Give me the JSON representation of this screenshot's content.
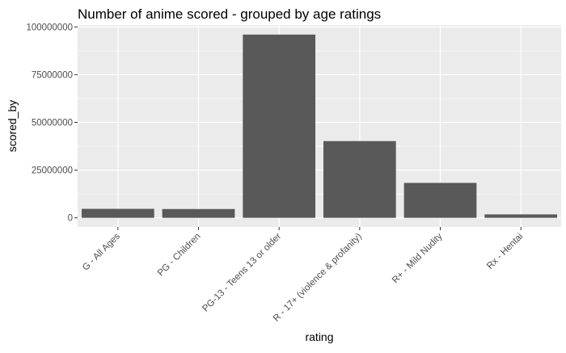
{
  "chart_data": {
    "type": "bar",
    "title": "Number of anime scored - grouped by age ratings",
    "xlabel": "rating",
    "ylabel": "scored_by",
    "categories": [
      "G - All Ages",
      "PG - Children",
      "PG-13 - Teens 13 or older",
      "R - 17+ (violence & profanity)",
      "R+ - Mild Nudity",
      "Rx - Hentai"
    ],
    "values": [
      4700000,
      4600000,
      96000000,
      40200000,
      18300000,
      1800000
    ],
    "ylim": [
      -4800000,
      101000000
    ],
    "yticks": [
      0,
      25000000,
      50000000,
      75000000,
      100000000
    ],
    "ytick_labels": [
      "0",
      "25000000",
      "50000000",
      "75000000",
      "100000000"
    ],
    "grid": true,
    "colors": {
      "bar": "#595959",
      "panel": "#ebebeb",
      "grid_major": "#ffffff",
      "text": "#000000",
      "tick_text": "#4d4d4d",
      "tick": "#333333"
    }
  }
}
